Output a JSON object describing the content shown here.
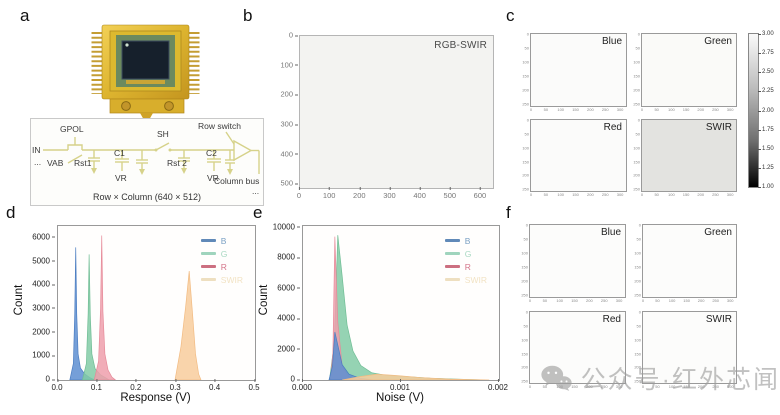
{
  "panels": {
    "a": {
      "label": "a",
      "chip": {
        "description": "gold ceramic packaged focal-plane-array sensor chip with side pins"
      },
      "circuit": {
        "gpol": "GPOL",
        "in": "IN",
        "dots_left": "...",
        "vab": "VAB",
        "rst1": "Rst1",
        "c1": "C1",
        "sh": "SH",
        "rst2": "Rst 2",
        "c2": "C2",
        "vr1": "VR",
        "vr2": "VR",
        "row_switch": "Row switch",
        "column_bus": "Column bus",
        "dots_right": "...",
        "caption": "Row × Column (640 × 512)"
      }
    },
    "b": {
      "label": "b",
      "title": "RGB-SWIR",
      "x_ticks": [
        "0",
        "100",
        "200",
        "300",
        "400",
        "500",
        "600"
      ],
      "x_max": 640,
      "y_ticks": [
        "0",
        "100",
        "200",
        "300",
        "400",
        "500"
      ],
      "y_max": 512
    },
    "c": {
      "label": "c",
      "images": [
        {
          "label": "Blue",
          "bg": "#fbfbfa"
        },
        {
          "label": "Green",
          "bg": "#fafaf8"
        },
        {
          "label": "Red",
          "bg": "#fbfbfa"
        },
        {
          "label": "SWIR",
          "bg": "#e3e3e0"
        }
      ],
      "colorbar": {
        "ticks": [
          "3.00",
          "2.75",
          "2.50",
          "2.25",
          "2.00",
          "1.75",
          "1.50",
          "1.25",
          "1.00"
        ]
      }
    },
    "d": {
      "label": "d",
      "xlabel": "Response (V)",
      "ylabel": "Count",
      "x_ticks": [
        "0.0",
        "0.1",
        "0.2",
        "0.3",
        "0.4",
        "0.5"
      ],
      "x_max": 0.5,
      "y_ticks": [
        "0",
        "1000",
        "2000",
        "3000",
        "4000",
        "5000",
        "6000"
      ],
      "y_max": 6500,
      "legend": [
        {
          "label": "B",
          "color": "#6089b8",
          "text_color": "#7aa0c4"
        },
        {
          "label": "G",
          "color": "#9fd4bd",
          "text_color": "#a8d8c2"
        },
        {
          "label": "R",
          "color": "#cc6f80",
          "text_color": "#d4758a"
        },
        {
          "label": "SWIR",
          "color": "#eedfc0",
          "text_color": "#f2e3c4"
        }
      ]
    },
    "e": {
      "label": "e",
      "xlabel": "Noise (V)",
      "ylabel": "Count",
      "x_ticks": [
        "0.000",
        "0.001",
        "0.002"
      ],
      "x_max": 0.002,
      "y_ticks": [
        "0",
        "2000",
        "4000",
        "6000",
        "8000",
        "10000"
      ],
      "y_max": 10100,
      "legend": [
        {
          "label": "B",
          "color": "#6089b8",
          "text_color": "#7aa0c4"
        },
        {
          "label": "G",
          "color": "#9fd4bd",
          "text_color": "#a8d8c2"
        },
        {
          "label": "R",
          "color": "#cc6f80",
          "text_color": "#d4758a"
        },
        {
          "label": "SWIR",
          "color": "#eedfc0",
          "text_color": "#f2e3c4"
        }
      ]
    },
    "f": {
      "label": "f",
      "images": [
        {
          "label": "Blue",
          "bg": "#fcfcfb"
        },
        {
          "label": "Green",
          "bg": "#fcfcfb"
        },
        {
          "label": "Red",
          "bg": "#fcfcfb"
        },
        {
          "label": "SWIR",
          "bg": "#fcfcfb"
        }
      ]
    }
  },
  "mini_axis": {
    "x_ticks": [
      "0",
      "50",
      "100",
      "150",
      "200",
      "250",
      "300"
    ],
    "x_max": 320,
    "y_ticks": [
      "0",
      "50",
      "100",
      "150",
      "200",
      "250"
    ],
    "y_max": 256
  },
  "watermark": {
    "icon": "wechat-logo",
    "text": "公众号·红外芯闻"
  },
  "chart_data": [
    {
      "id": "b",
      "type": "heatmap",
      "title": "RGB-SWIR",
      "xlim": [
        0,
        640
      ],
      "ylim": [
        512,
        0
      ],
      "x_ticks": [
        0,
        100,
        200,
        300,
        400,
        500,
        600
      ],
      "y_ticks": [
        0,
        100,
        200,
        300,
        400,
        500
      ],
      "appearance": "near-uniform bright (nearly white) full-frame map"
    },
    {
      "id": "c",
      "type": "heatmap",
      "images": [
        "Blue",
        "Green",
        "Red",
        "SWIR"
      ],
      "image_xlim": [
        0,
        320
      ],
      "image_ylim": [
        256,
        0
      ],
      "colorbar_range": [
        1.0,
        3.0
      ],
      "colorbar_ticks": [
        3.0,
        2.75,
        2.5,
        2.25,
        2.0,
        1.75,
        1.5,
        1.25,
        1.0
      ],
      "approx_uniform_value": {
        "Blue": 2.95,
        "Green": 2.95,
        "Red": 2.95,
        "SWIR": 2.7
      }
    },
    {
      "id": "d",
      "type": "area",
      "xlabel": "Response (V)",
      "ylabel": "Count",
      "xlim": [
        0,
        0.5
      ],
      "ylim": [
        0,
        6500
      ],
      "legend_position": "upper right",
      "series": [
        {
          "name": "B",
          "fill": "#5d8ed1",
          "stroke": "#4a7cc0",
          "peak_x": 0.045,
          "peak_count": 5600,
          "points": [
            [
              0.03,
              0
            ],
            [
              0.039,
              700
            ],
            [
              0.0425,
              2800
            ],
            [
              0.045,
              5600
            ],
            [
              0.0475,
              2800
            ],
            [
              0.051,
              1100
            ],
            [
              0.057,
              500
            ],
            [
              0.068,
              250
            ],
            [
              0.082,
              90
            ],
            [
              0.093,
              0
            ]
          ]
        },
        {
          "name": "G",
          "fill": "#82cba6",
          "stroke": "#6fbd94",
          "peak_x": 0.079,
          "peak_count": 5300,
          "points": [
            [
              0.062,
              0
            ],
            [
              0.072,
              700
            ],
            [
              0.0765,
              2800
            ],
            [
              0.079,
              5300
            ],
            [
              0.082,
              2700
            ],
            [
              0.086,
              1100
            ],
            [
              0.094,
              480
            ],
            [
              0.108,
              220
            ],
            [
              0.122,
              80
            ],
            [
              0.13,
              0
            ]
          ]
        },
        {
          "name": "R",
          "fill": "#ef9fab",
          "stroke": "#e68a99",
          "peak_x": 0.111,
          "peak_count": 6100,
          "points": [
            [
              0.092,
              0
            ],
            [
              0.103,
              800
            ],
            [
              0.108,
              3000
            ],
            [
              0.111,
              6100
            ],
            [
              0.114,
              2900
            ],
            [
              0.119,
              1100
            ],
            [
              0.127,
              420
            ],
            [
              0.137,
              120
            ],
            [
              0.146,
              0
            ]
          ]
        },
        {
          "name": "SWIR",
          "fill": "#f8cc9c",
          "stroke": "#f2bb82",
          "peak_x": 0.333,
          "peak_count": 4600,
          "points": [
            [
              0.297,
              0
            ],
            [
              0.312,
              1400
            ],
            [
              0.324,
              3100
            ],
            [
              0.333,
              4600
            ],
            [
              0.341,
              2900
            ],
            [
              0.349,
              1100
            ],
            [
              0.357,
              250
            ],
            [
              0.363,
              0
            ]
          ]
        }
      ]
    },
    {
      "id": "e",
      "type": "area",
      "xlabel": "Noise (V)",
      "ylabel": "Count",
      "xlim": [
        0,
        0.002
      ],
      "ylim": [
        0,
        10100
      ],
      "legend_position": "upper right",
      "series": [
        {
          "name": "G",
          "fill": "#82cba6",
          "stroke": "#6fbd94",
          "peak_x": 0.000355,
          "peak_count": 9500,
          "points": [
            [
              0.00027,
              0
            ],
            [
              0.00032,
              2500
            ],
            [
              0.000355,
              9500
            ],
            [
              0.0004,
              6800
            ],
            [
              0.00045,
              3600
            ],
            [
              0.00051,
              1900
            ],
            [
              0.00059,
              950
            ],
            [
              0.0007,
              480
            ],
            [
              0.00085,
              300
            ],
            [
              0.00105,
              220
            ],
            [
              0.0013,
              120
            ],
            [
              0.0016,
              50
            ],
            [
              0.00185,
              0
            ]
          ]
        },
        {
          "name": "R",
          "fill": "#ef9fab",
          "stroke": "#e68a99",
          "peak_x": 0.000325,
          "peak_count": 9400,
          "points": [
            [
              0.00028,
              0
            ],
            [
              0.000305,
              1800
            ],
            [
              0.000325,
              9400
            ],
            [
              0.000355,
              3800
            ],
            [
              0.0004,
              900
            ],
            [
              0.00047,
              200
            ],
            [
              0.00056,
              0
            ]
          ]
        },
        {
          "name": "B",
          "fill": "#5d8ed1",
          "stroke": "#4a7cc0",
          "peak_x": 0.000325,
          "peak_count": 3150,
          "points": [
            [
              0.000265,
              0
            ],
            [
              0.0003,
              900
            ],
            [
              0.000325,
              3150
            ],
            [
              0.000355,
              2300
            ],
            [
              0.0004,
              1000
            ],
            [
              0.00047,
              380
            ],
            [
              0.00058,
              120
            ],
            [
              0.00072,
              0
            ]
          ]
        },
        {
          "name": "SWIR",
          "fill": "#f8cc9c",
          "stroke": "#f2bb82",
          "peak_x": 0.00075,
          "peak_count": 380,
          "points": [
            [
              0.0004,
              0
            ],
            [
              0.00058,
              220
            ],
            [
              0.00075,
              380
            ],
            [
              0.00095,
              300
            ],
            [
              0.0012,
              160
            ],
            [
              0.0015,
              60
            ],
            [
              0.0019,
              0
            ]
          ]
        }
      ]
    },
    {
      "id": "f",
      "type": "heatmap",
      "images": [
        "Blue",
        "Green",
        "Red",
        "SWIR"
      ],
      "image_xlim": [
        0,
        320
      ],
      "image_ylim": [
        256,
        0
      ],
      "appearance": "near-uniform white maps"
    }
  ]
}
